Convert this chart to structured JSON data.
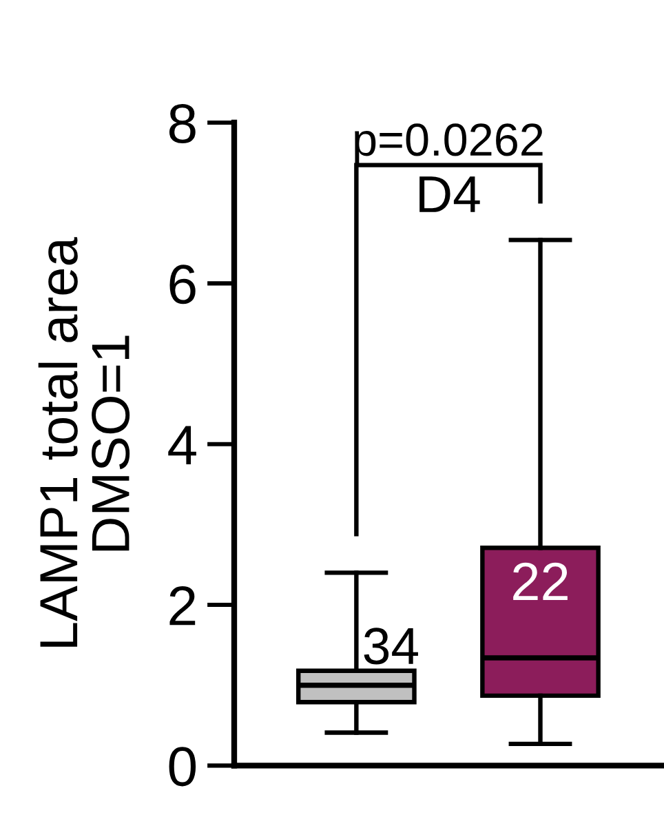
{
  "chart_data": {
    "type": "box",
    "ylabel": "LAMP1 total area\nDMSO=1",
    "categories": [
      null,
      null
    ],
    "boxes": [
      {
        "low": 0.41,
        "q1": 0.79,
        "median": 1.0,
        "q3": 1.18,
        "high": 2.4
      },
      {
        "low": 0.27,
        "q1": 0.87,
        "median": 1.34,
        "q3": 2.71,
        "high": 6.54
      }
    ],
    "colors": [
      "#c0c0c0",
      "#8c1d5b"
    ],
    "ylim": [
      0,
      8
    ],
    "yticks": [
      0,
      2,
      4,
      6,
      8
    ],
    "tick_labels": "y",
    "annotations": [
      "p=0.0262",
      "D4",
      "34",
      "22"
    ]
  }
}
